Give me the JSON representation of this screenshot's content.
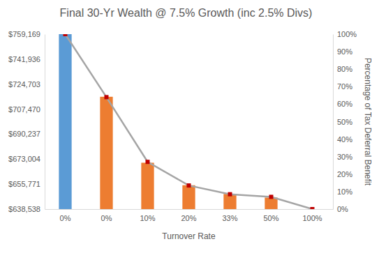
{
  "chart_data": {
    "type": "bar",
    "title": "Final 30-Yr Wealth @ 7.5% Growth (inc 2.5% Divs)",
    "x_label": "Turnover Rate",
    "y2_label": "Percentage of Tax Deferral Benefit",
    "categories": [
      "0%",
      "0%",
      "10%",
      "20%",
      "33%",
      "50%",
      "100%"
    ],
    "grid": false,
    "ylim": [
      638538,
      759169
    ],
    "yticks": [
      {
        "value": 638538,
        "label": "$638,538"
      },
      {
        "value": 655771,
        "label": "$655,771"
      },
      {
        "value": 673004,
        "label": "$673,004"
      },
      {
        "value": 690237,
        "label": "$690,237"
      },
      {
        "value": 707470,
        "label": "$707,470"
      },
      {
        "value": 724703,
        "label": "$724,703"
      },
      {
        "value": 741936,
        "label": "$741,936"
      },
      {
        "value": 759169,
        "label": "$759,169"
      }
    ],
    "y2lim": [
      0,
      100
    ],
    "y2ticks": [
      {
        "value": 0,
        "label": "0%"
      },
      {
        "value": 10,
        "label": "10%"
      },
      {
        "value": 20,
        "label": "20%"
      },
      {
        "value": 30,
        "label": "30%"
      },
      {
        "value": 40,
        "label": "40%"
      },
      {
        "value": 50,
        "label": "50%"
      },
      {
        "value": 60,
        "label": "60%"
      },
      {
        "value": 70,
        "label": "70%"
      },
      {
        "value": 80,
        "label": "80%"
      },
      {
        "value": 90,
        "label": "90%"
      },
      {
        "value": 100,
        "label": "100%"
      }
    ],
    "series": [
      {
        "type": "bar",
        "colors": [
          "#5b9bd5",
          "#ed7d31",
          "#ed7d31",
          "#ed7d31",
          "#ed7d31",
          "#ed7d31",
          "#ed7d31"
        ],
        "values": [
          759169,
          716000,
          670500,
          655000,
          649000,
          646500,
          638538
        ]
      },
      {
        "type": "line",
        "axis": "y2",
        "color": "#a5a5a5",
        "marker": "square",
        "line_style": "solid",
        "values": [
          100,
          64,
          27,
          13.5,
          8.5,
          7,
          0
        ]
      }
    ]
  }
}
